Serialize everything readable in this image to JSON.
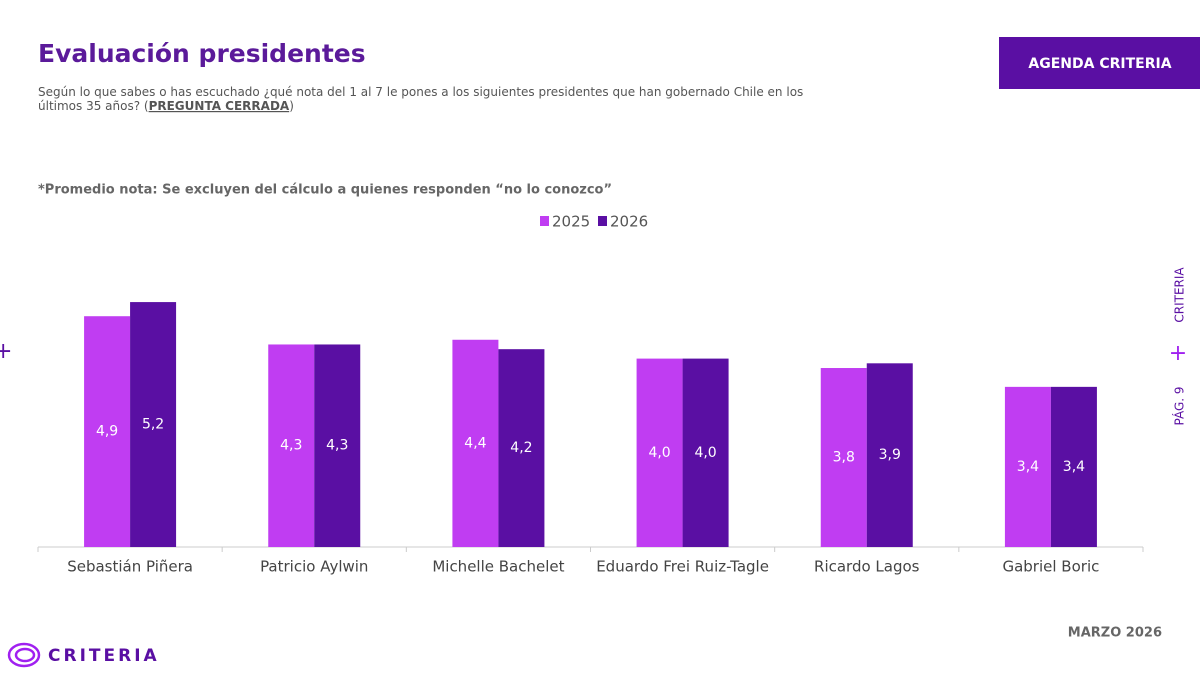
{
  "chart_data": {
    "type": "bar",
    "title": "Evaluación presidentes",
    "subtitle": [
      "Según lo que sabes o has escuchado ¿qué nota del 1 al 7 le pones a los siguientes presidentes que han gobernado Chile en los",
      "últimos 35 años? ("
    ],
    "subtitle_emphasis": "PREGUNTA CERRADA",
    "subtitle_end": ")",
    "note": "*Promedio nota: Se excluyen del cálculo a quienes responden “no lo conozco”",
    "categories": [
      "Sebastián Piñera",
      "Patricio Aylwin",
      "Michelle Bachelet",
      "Eduardo Frei Ruiz-Tagle",
      "Ricardo Lagos",
      "Gabriel Boric"
    ],
    "series": [
      {
        "name": "2025",
        "color": "#c03df2",
        "values": [
          4.9,
          4.3,
          4.4,
          4.0,
          3.8,
          3.4
        ],
        "value_labels": [
          "4,9",
          "4,3",
          "4,4",
          "4,0",
          "3,8",
          "3,4"
        ]
      },
      {
        "name": "2026",
        "color": "#5a0fa3",
        "values": [
          5.2,
          4.3,
          4.2,
          4.0,
          3.9,
          3.4
        ],
        "value_labels": [
          "5,2",
          "4,3",
          "4,2",
          "4,0",
          "3,9",
          "3,4"
        ]
      }
    ],
    "legend": "top"
  },
  "badge": "AGENDA CRITERIA",
  "side_label": "CRITERIA",
  "page_label": "PÁG. 9",
  "footer_date": "MARZO 2026",
  "logo": "CRITERIA"
}
